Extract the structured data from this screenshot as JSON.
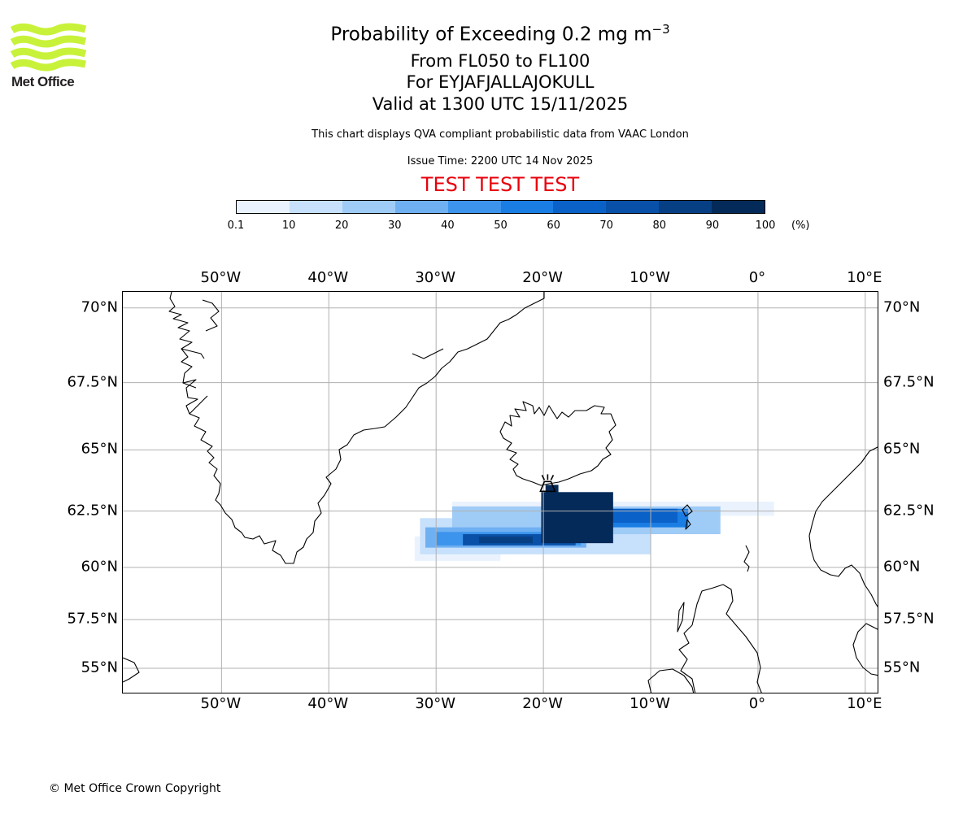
{
  "logo": {
    "text": "Met Office",
    "color": "#c8f23a"
  },
  "title": {
    "main": "Probability of Exceeding 0.2 mg m",
    "main_sup": "−3",
    "levels": "From FL050 to FL100",
    "volcano": "For EYJAFJALLAJOKULL",
    "valid": "Valid at 1300 UTC 15/11/2025"
  },
  "subtitle": "This chart displays QVA compliant probabilistic data from VAAC London",
  "issue_time": "Issue Time: 2200 UTC 14 Nov 2025",
  "test_banner": "TEST TEST TEST",
  "test_color": "#e8000b",
  "colorbar": {
    "ticks": [
      "0.1",
      "10",
      "20",
      "30",
      "40",
      "50",
      "60",
      "70",
      "80",
      "90",
      "100"
    ],
    "unit": "(%)",
    "colors": [
      "#eaf3fd",
      "#c7e0fb",
      "#9fcbf7",
      "#6fb0f2",
      "#3d94ec",
      "#1a7de4",
      "#0a62c9",
      "#0950a8",
      "#073f85",
      "#042a59"
    ]
  },
  "map": {
    "lon_labels": [
      "50°W",
      "40°W",
      "30°W",
      "20°W",
      "10°W",
      "0°",
      "10°E"
    ],
    "lat_labels": [
      "70°N",
      "67.5°N",
      "65°N",
      "62.5°N",
      "60°N",
      "57.5°N",
      "55°N"
    ],
    "lon_range": [
      -59.2,
      11.3
    ],
    "gridline_color": "#b0b0b0",
    "volcano_icon": "volcano-icon"
  },
  "chart_data": {
    "type": "heatmap",
    "title": "Probability of Exceeding 0.2 mg m−3",
    "units": "%",
    "bins": [
      0.1,
      10,
      20,
      30,
      40,
      50,
      60,
      70,
      80,
      90,
      100
    ],
    "volcano": {
      "name": "EYJAFJALLAJOKULL",
      "lon": -19.6,
      "lat": 63.6
    },
    "cells": [
      {
        "lon0": -28.5,
        "lon1": 1.5,
        "lat0": 62.3,
        "lat1": 62.9,
        "p": 5
      },
      {
        "lon0": -32.0,
        "lon1": -24.0,
        "lat0": 60.3,
        "lat1": 61.4,
        "p": 5
      },
      {
        "lon0": -31.5,
        "lon1": -10.0,
        "lat0": 60.6,
        "lat1": 62.2,
        "p": 15
      },
      {
        "lon0": -28.5,
        "lon1": -3.5,
        "lat0": 61.5,
        "lat1": 62.7,
        "p": 25
      },
      {
        "lon0": -31.0,
        "lon1": -16.0,
        "lat0": 60.9,
        "lat1": 61.8,
        "p": 35
      },
      {
        "lon0": -30.0,
        "lon1": -16.5,
        "lat0": 61.0,
        "lat1": 61.6,
        "p": 45
      },
      {
        "lon0": -16.0,
        "lon1": -6.5,
        "lat0": 61.8,
        "lat1": 62.6,
        "p": 55
      },
      {
        "lon0": -14.0,
        "lon1": -7.5,
        "lat0": 62.0,
        "lat1": 62.6,
        "p": 65
      },
      {
        "lon0": -27.5,
        "lon1": -17.0,
        "lat0": 61.0,
        "lat1": 61.5,
        "p": 75
      },
      {
        "lon0": -26.0,
        "lon1": -21.0,
        "lat0": 61.1,
        "lat1": 61.4,
        "p": 85
      },
      {
        "lon0": -20.2,
        "lon1": -13.5,
        "lat0": 61.1,
        "lat1": 63.3,
        "p": 95
      },
      {
        "lon0": -19.8,
        "lon1": -18.6,
        "lat0": 62.8,
        "lat1": 63.6,
        "p": 95
      }
    ]
  }
}
